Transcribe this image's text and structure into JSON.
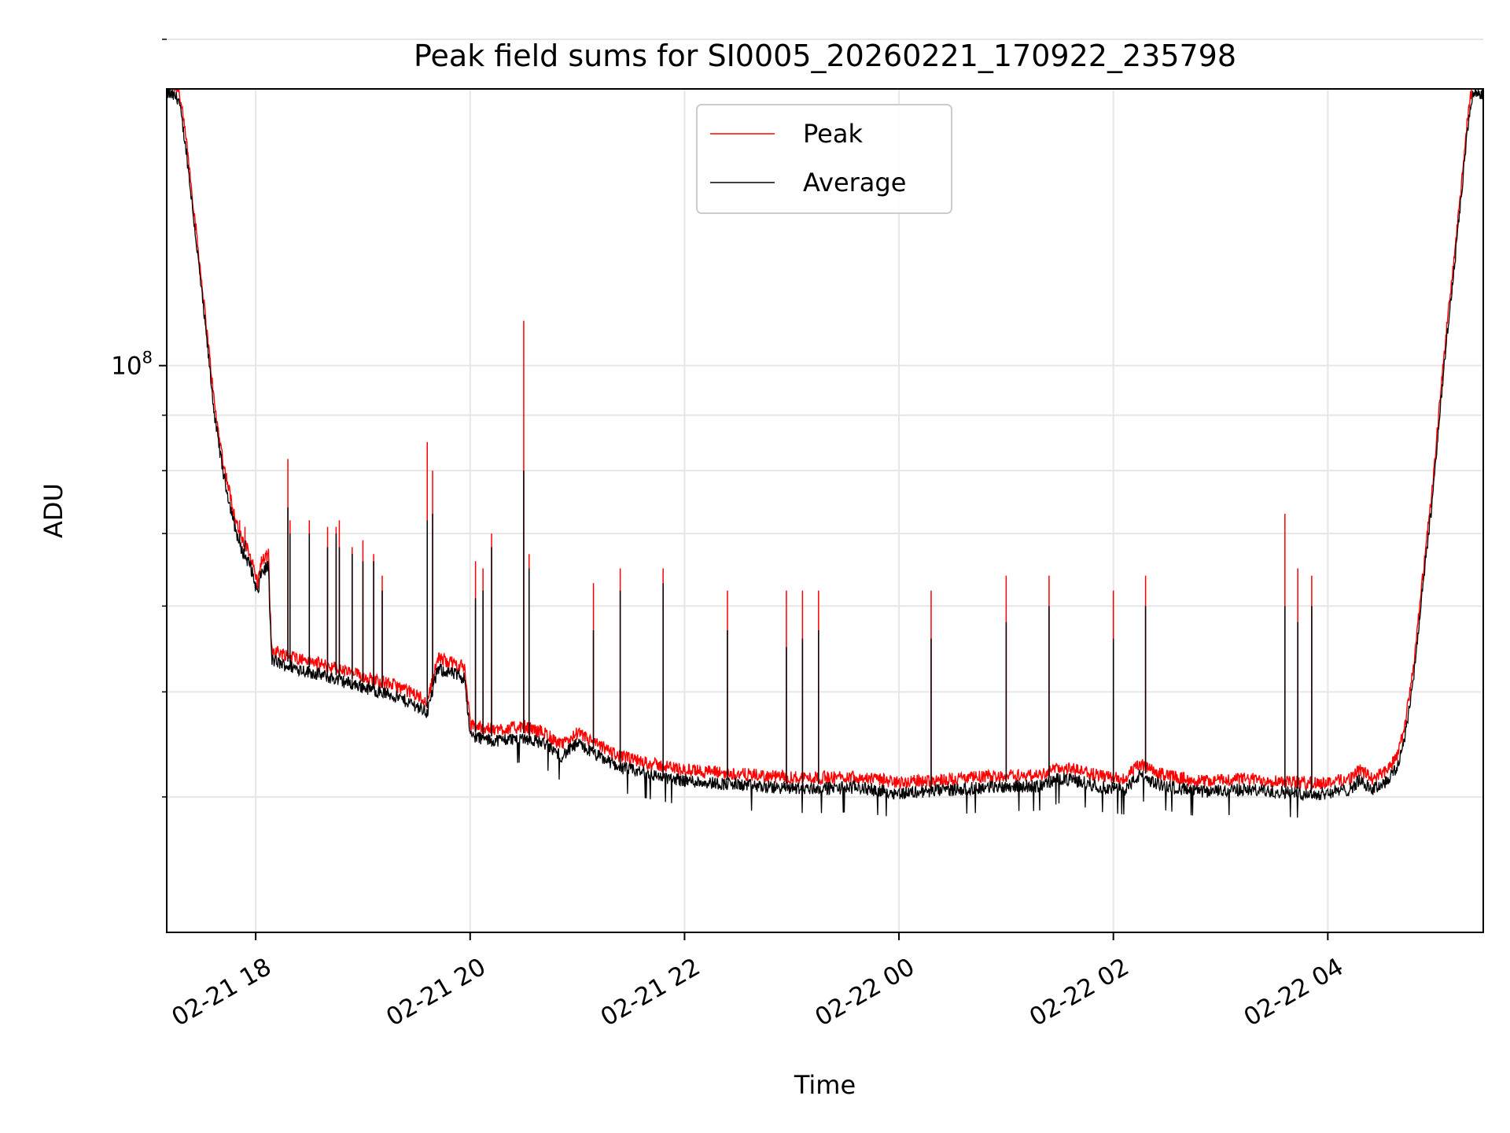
{
  "chart_data": {
    "type": "line",
    "title": "Peak field sums for SI0005_20260221_170922_235798",
    "xlabel": "Time",
    "ylabel": "ADU",
    "yscale": "log",
    "ylim": [
      30000000,
      180000000
    ],
    "xlim_hours": [
      -0.83,
      11.45
    ],
    "x_ticks": [
      {
        "label": "02-21 18",
        "hours": 0
      },
      {
        "label": "02-21 20",
        "hours": 2
      },
      {
        "label": "02-21 22",
        "hours": 4
      },
      {
        "label": "02-22 00",
        "hours": 6
      },
      {
        "label": "02-22 02",
        "hours": 8
      },
      {
        "label": "02-22 04",
        "hours": 10
      }
    ],
    "y_major_tick": {
      "label_base": "10",
      "label_exp": "8",
      "value": 100000000
    },
    "y_minor_ticks": [
      40000000,
      50000000,
      60000000,
      70000000,
      80000000,
      90000000,
      200000000
    ],
    "grid": true,
    "legend_position": "upper center",
    "series": [
      {
        "name": "Peak",
        "color": "#ff0000"
      },
      {
        "name": "Average",
        "color": "#000000"
      }
    ],
    "baseline": [
      {
        "t": -0.83,
        "v": 180000000
      },
      {
        "t": -0.72,
        "v": 178000000
      },
      {
        "t": -0.65,
        "v": 160000000
      },
      {
        "t": -0.55,
        "v": 130000000
      },
      {
        "t": -0.45,
        "v": 105000000
      },
      {
        "t": -0.38,
        "v": 90000000
      },
      {
        "t": -0.3,
        "v": 80000000
      },
      {
        "t": -0.2,
        "v": 72000000
      },
      {
        "t": -0.14,
        "v": 68500000
      },
      {
        "t": -0.05,
        "v": 66000000
      },
      {
        "t": 0.02,
        "v": 62000000
      },
      {
        "t": 0.05,
        "v": 65000000
      },
      {
        "t": 0.12,
        "v": 66000000
      },
      {
        "t": 0.13,
        "v": 60000000
      },
      {
        "t": 0.15,
        "v": 54000000
      },
      {
        "t": 0.25,
        "v": 53500000
      },
      {
        "t": 0.7,
        "v": 52000000
      },
      {
        "t": 1.0,
        "v": 51000000
      },
      {
        "t": 1.3,
        "v": 50000000
      },
      {
        "t": 1.5,
        "v": 49000000
      },
      {
        "t": 1.6,
        "v": 48300000
      },
      {
        "t": 1.7,
        "v": 53000000
      },
      {
        "t": 1.95,
        "v": 52000000
      },
      {
        "t": 2.0,
        "v": 46000000
      },
      {
        "t": 2.2,
        "v": 45500000
      },
      {
        "t": 2.5,
        "v": 45800000
      },
      {
        "t": 2.7,
        "v": 45200000
      },
      {
        "t": 2.85,
        "v": 44000000
      },
      {
        "t": 3.0,
        "v": 45200000
      },
      {
        "t": 3.2,
        "v": 44000000
      },
      {
        "t": 3.4,
        "v": 43000000
      },
      {
        "t": 3.7,
        "v": 42300000
      },
      {
        "t": 4.0,
        "v": 41800000
      },
      {
        "t": 4.4,
        "v": 41500000
      },
      {
        "t": 4.8,
        "v": 41200000
      },
      {
        "t": 5.2,
        "v": 41100000
      },
      {
        "t": 5.6,
        "v": 41200000
      },
      {
        "t": 6.0,
        "v": 40700000
      },
      {
        "t": 6.5,
        "v": 41000000
      },
      {
        "t": 7.0,
        "v": 41300000
      },
      {
        "t": 7.3,
        "v": 41300000
      },
      {
        "t": 7.5,
        "v": 42000000
      },
      {
        "t": 7.7,
        "v": 41700000
      },
      {
        "t": 7.9,
        "v": 41200000
      },
      {
        "t": 8.1,
        "v": 41000000
      },
      {
        "t": 8.25,
        "v": 42300000
      },
      {
        "t": 8.4,
        "v": 41500000
      },
      {
        "t": 8.8,
        "v": 40800000
      },
      {
        "t": 9.2,
        "v": 41000000
      },
      {
        "t": 9.6,
        "v": 40800000
      },
      {
        "t": 9.9,
        "v": 40600000
      },
      {
        "t": 10.2,
        "v": 41000000
      },
      {
        "t": 10.3,
        "v": 41800000
      },
      {
        "t": 10.42,
        "v": 41000000
      },
      {
        "t": 10.55,
        "v": 41800000
      },
      {
        "t": 10.65,
        "v": 43000000
      },
      {
        "t": 10.72,
        "v": 46000000
      },
      {
        "t": 10.8,
        "v": 52000000
      },
      {
        "t": 10.9,
        "v": 65000000
      },
      {
        "t": 10.97,
        "v": 75000000
      },
      {
        "t": 11.08,
        "v": 100000000
      },
      {
        "t": 11.2,
        "v": 130000000
      },
      {
        "t": 11.3,
        "v": 165000000
      },
      {
        "t": 11.35,
        "v": 180000000
      },
      {
        "t": 11.45,
        "v": 180000000
      }
    ],
    "spikes": [
      {
        "t": -0.15,
        "peak": 72000000,
        "avg": 70000000
      },
      {
        "t": -0.1,
        "peak": 71000000,
        "avg": 69000000
      },
      {
        "t": 0.3,
        "peak": 82000000,
        "avg": 74000000
      },
      {
        "t": 0.32,
        "peak": 72000000,
        "avg": 70000000
      },
      {
        "t": 0.5,
        "peak": 72000000,
        "avg": 70000000
      },
      {
        "t": 0.67,
        "peak": 71000000,
        "avg": 68000000
      },
      {
        "t": 0.75,
        "peak": 71000000,
        "avg": 70000000
      },
      {
        "t": 0.78,
        "peak": 72000000,
        "avg": 68000000
      },
      {
        "t": 0.9,
        "peak": 68000000,
        "avg": 67000000
      },
      {
        "t": 1.0,
        "peak": 69000000,
        "avg": 66000000
      },
      {
        "t": 1.1,
        "peak": 67000000,
        "avg": 66000000
      },
      {
        "t": 1.18,
        "peak": 64000000,
        "avg": 62000000
      },
      {
        "t": 1.6,
        "peak": 85000000,
        "avg": 72000000
      },
      {
        "t": 1.65,
        "peak": 80000000,
        "avg": 73000000
      },
      {
        "t": 2.05,
        "peak": 66000000,
        "avg": 61000000
      },
      {
        "t": 2.12,
        "peak": 65000000,
        "avg": 62000000
      },
      {
        "t": 2.2,
        "peak": 70000000,
        "avg": 68000000
      },
      {
        "t": 2.5,
        "peak": 110000000,
        "avg": 80000000
      },
      {
        "t": 2.55,
        "peak": 67000000,
        "avg": 65000000
      },
      {
        "t": 3.15,
        "peak": 63000000,
        "avg": 57000000
      },
      {
        "t": 3.4,
        "peak": 65000000,
        "avg": 62000000
      },
      {
        "t": 3.8,
        "peak": 65000000,
        "avg": 63000000
      },
      {
        "t": 4.4,
        "peak": 62000000,
        "avg": 57000000
      },
      {
        "t": 4.95,
        "peak": 62000000,
        "avg": 55000000
      },
      {
        "t": 5.1,
        "peak": 62000000,
        "avg": 56000000
      },
      {
        "t": 5.25,
        "peak": 62000000,
        "avg": 57000000
      },
      {
        "t": 6.3,
        "peak": 62000000,
        "avg": 56000000
      },
      {
        "t": 7.0,
        "peak": 64000000,
        "avg": 58000000
      },
      {
        "t": 7.4,
        "peak": 64000000,
        "avg": 60000000
      },
      {
        "t": 8.0,
        "peak": 62000000,
        "avg": 56000000
      },
      {
        "t": 8.3,
        "peak": 64000000,
        "avg": 60000000
      },
      {
        "t": 9.6,
        "peak": 73000000,
        "avg": 60000000
      },
      {
        "t": 9.72,
        "peak": 65000000,
        "avg": 58000000
      },
      {
        "t": 9.85,
        "peak": 64000000,
        "avg": 60000000
      }
    ]
  }
}
